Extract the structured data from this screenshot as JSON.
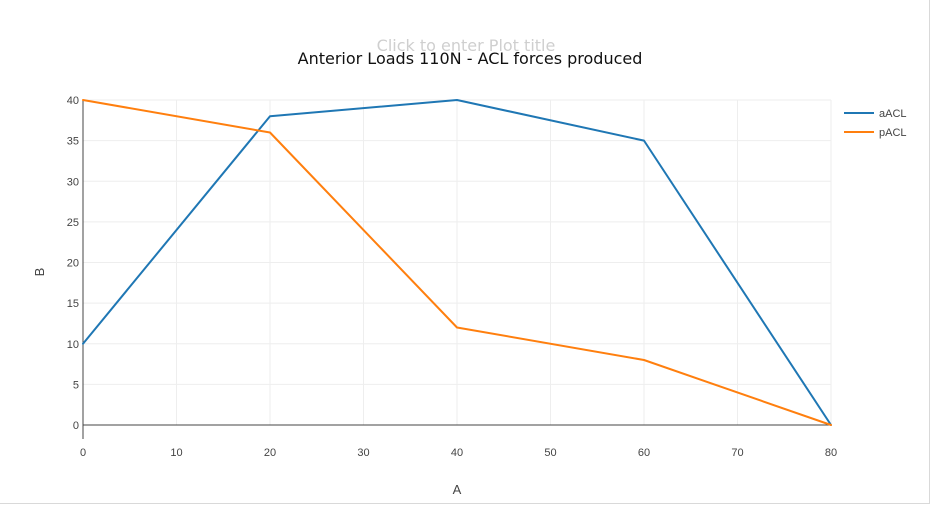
{
  "chart_data": {
    "type": "line",
    "title": "Anterior Loads 110N - ACL forces produced",
    "title_placeholder": "Click to enter Plot title",
    "xlabel": "A",
    "ylabel": "B",
    "xlim": [
      0,
      80
    ],
    "ylim": [
      0,
      40
    ],
    "x_ticks": [
      0,
      10,
      20,
      30,
      40,
      50,
      60,
      70,
      80
    ],
    "y_ticks": [
      0,
      5,
      10,
      15,
      20,
      25,
      30,
      35,
      40
    ],
    "grid": true,
    "legend_position": "top-right",
    "series": [
      {
        "name": "aACL",
        "color": "#1f77b4",
        "x": [
          0,
          20,
          40,
          60,
          80
        ],
        "y": [
          10,
          38,
          40,
          35,
          0
        ]
      },
      {
        "name": "pACL",
        "color": "#ff7f0e",
        "x": [
          0,
          20,
          40,
          60,
          80
        ],
        "y": [
          40,
          36,
          12,
          8,
          0
        ]
      }
    ]
  }
}
